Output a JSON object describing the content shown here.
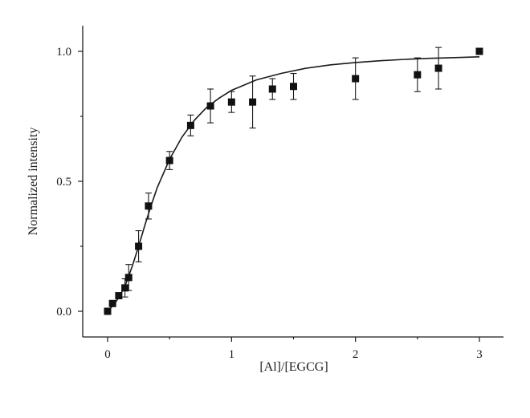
{
  "chart_data": {
    "type": "scatter",
    "title": "",
    "xlabel": "[Al]/[EGCG]",
    "ylabel": "Normalized intensity",
    "xlim": [
      -0.2,
      3.2
    ],
    "ylim": [
      -0.1,
      1.1
    ],
    "xticks": [
      0,
      1,
      2,
      3
    ],
    "xtick_labels": [
      "0",
      "1",
      "2",
      "3"
    ],
    "yticks": [
      0.0,
      0.5,
      1.0
    ],
    "ytick_labels": [
      "0.0",
      "0.5",
      "1.0"
    ],
    "grid": false,
    "legend": "none",
    "marker": "square",
    "colors": {
      "ink": "#111111"
    },
    "series": [
      {
        "points": [
          {
            "x": 0.0,
            "y": 0.0,
            "err": 0.0
          },
          {
            "x": 0.04,
            "y": 0.03,
            "err": 0.0
          },
          {
            "x": 0.09,
            "y": 0.06,
            "err": 0.0
          },
          {
            "x": 0.14,
            "y": 0.09,
            "err": 0.035
          },
          {
            "x": 0.17,
            "y": 0.13,
            "err": 0.05
          },
          {
            "x": 0.25,
            "y": 0.25,
            "err": 0.06
          },
          {
            "x": 0.33,
            "y": 0.405,
            "err": 0.05
          },
          {
            "x": 0.5,
            "y": 0.58,
            "err": 0.035
          },
          {
            "x": 0.67,
            "y": 0.715,
            "err": 0.04
          },
          {
            "x": 0.83,
            "y": 0.79,
            "err": 0.065
          },
          {
            "x": 1.0,
            "y": 0.805,
            "err": 0.04
          },
          {
            "x": 1.17,
            "y": 0.805,
            "err": 0.1
          },
          {
            "x": 1.33,
            "y": 0.855,
            "err": 0.04
          },
          {
            "x": 1.5,
            "y": 0.865,
            "err": 0.05
          },
          {
            "x": 2.0,
            "y": 0.895,
            "err": 0.08
          },
          {
            "x": 2.5,
            "y": 0.91,
            "err": 0.065
          },
          {
            "x": 2.67,
            "y": 0.935,
            "err": 0.08
          },
          {
            "x": 3.0,
            "y": 1.0,
            "err": 0.0
          }
        ]
      }
    ],
    "fit_curve": {
      "type": "line",
      "points": [
        {
          "x": 0.0,
          "y": 0.0
        },
        {
          "x": 0.05,
          "y": 0.025
        },
        {
          "x": 0.1,
          "y": 0.06
        },
        {
          "x": 0.15,
          "y": 0.11
        },
        {
          "x": 0.2,
          "y": 0.175
        },
        {
          "x": 0.25,
          "y": 0.25
        },
        {
          "x": 0.3,
          "y": 0.33
        },
        {
          "x": 0.35,
          "y": 0.405
        },
        {
          "x": 0.4,
          "y": 0.475
        },
        {
          "x": 0.5,
          "y": 0.585
        },
        {
          "x": 0.6,
          "y": 0.67
        },
        {
          "x": 0.7,
          "y": 0.735
        },
        {
          "x": 0.8,
          "y": 0.785
        },
        {
          "x": 0.9,
          "y": 0.82
        },
        {
          "x": 1.0,
          "y": 0.85
        },
        {
          "x": 1.2,
          "y": 0.89
        },
        {
          "x": 1.4,
          "y": 0.915
        },
        {
          "x": 1.6,
          "y": 0.935
        },
        {
          "x": 1.8,
          "y": 0.948
        },
        {
          "x": 2.0,
          "y": 0.957
        },
        {
          "x": 2.2,
          "y": 0.964
        },
        {
          "x": 2.4,
          "y": 0.969
        },
        {
          "x": 2.6,
          "y": 0.973
        },
        {
          "x": 2.8,
          "y": 0.976
        },
        {
          "x": 3.0,
          "y": 0.979
        }
      ]
    }
  }
}
